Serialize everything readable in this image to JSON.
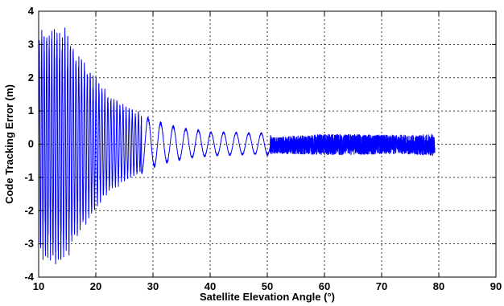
{
  "chart_data": {
    "type": "line",
    "title": "",
    "xlabel": "Satellite Elevation Angle (°)",
    "ylabel": "Code Tracking Error (m)",
    "xlim": [
      10,
      90
    ],
    "ylim": [
      -4,
      4
    ],
    "xticks": [
      "10",
      "20",
      "30",
      "40",
      "50",
      "60",
      "70",
      "80",
      "90"
    ],
    "yticks": [
      "4",
      "3",
      "2",
      "1",
      "0",
      "-1",
      "-2",
      "-3",
      "-4"
    ],
    "grid": true,
    "series": [
      {
        "color": "#0000ff",
        "x_range": [
          10,
          79.3
        ],
        "envelope": {
          "x": [
            10,
            10.5,
            11,
            12,
            13,
            14,
            15,
            15.5,
            16,
            17,
            18,
            19,
            20,
            21,
            22,
            24,
            26,
            28,
            30,
            32,
            34,
            36,
            38,
            40,
            42,
            44,
            46,
            48,
            50,
            51,
            55,
            60,
            65,
            70,
            75,
            79.3
          ],
          "upper": [
            3.2,
            3.6,
            3.5,
            3.55,
            3.5,
            3.55,
            3.5,
            3.3,
            3.1,
            2.85,
            2.55,
            2.35,
            2.1,
            1.85,
            1.6,
            1.35,
            1.1,
            0.95,
            0.75,
            0.65,
            0.55,
            0.48,
            0.45,
            0.38,
            0.38,
            0.38,
            0.35,
            0.35,
            0.35,
            0.2,
            0.25,
            0.3,
            0.3,
            0.28,
            0.28,
            0.3
          ],
          "lower": [
            -3.3,
            -3.5,
            -3.6,
            -3.6,
            -3.65,
            -3.6,
            -3.55,
            -3.3,
            -3.0,
            -2.75,
            -2.5,
            -2.2,
            -2.0,
            -1.75,
            -1.55,
            -1.3,
            -1.05,
            -0.9,
            -0.72,
            -0.6,
            -0.52,
            -0.45,
            -0.4,
            -0.38,
            -0.35,
            -0.35,
            -0.33,
            -0.32,
            -0.35,
            -0.28,
            -0.3,
            -0.32,
            -0.32,
            -0.3,
            -0.3,
            -0.35
          ]
        }
      }
    ]
  }
}
